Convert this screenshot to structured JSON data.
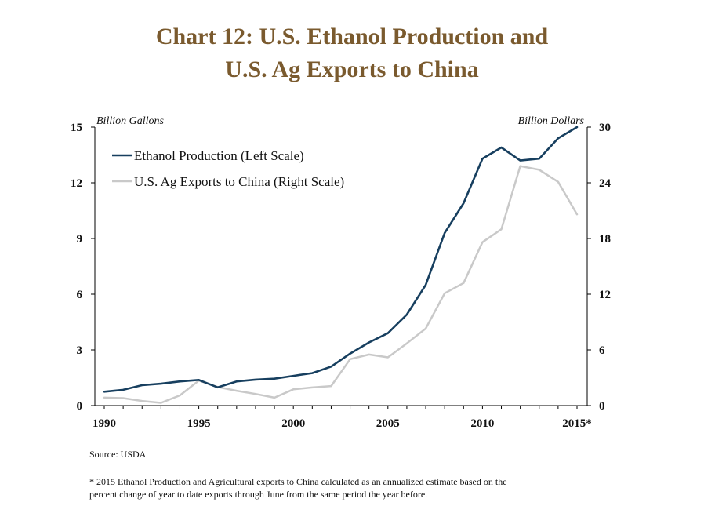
{
  "chart_data": {
    "type": "line",
    "title_lines": [
      "Chart 12: U.S. Ethanol Production and",
      "U.S. Ag Exports to China"
    ],
    "left_axis_label": "Billion Gallons",
    "right_axis_label": "Billion Dollars",
    "x_ticks": [
      "1990",
      "1995",
      "2000",
      "2005",
      "2010",
      "2015*"
    ],
    "left_ticks": [
      "0",
      "3",
      "6",
      "9",
      "12",
      "15"
    ],
    "right_ticks": [
      "0",
      "6",
      "12",
      "18",
      "24",
      "30"
    ],
    "ylim_left": [
      0,
      15
    ],
    "ylim_right": [
      0,
      30
    ],
    "xlim": [
      1990,
      2015
    ],
    "legend_position": "top-left",
    "x": [
      1990,
      1991,
      1992,
      1993,
      1994,
      1995,
      1996,
      1997,
      1998,
      1999,
      2000,
      2001,
      2002,
      2003,
      2004,
      2005,
      2006,
      2007,
      2008,
      2009,
      2010,
      2011,
      2012,
      2013,
      2014,
      2015
    ],
    "series": [
      {
        "name": "Ethanol Production (Left Scale)",
        "axis": "left",
        "color": "#173f5f",
        "values": [
          0.75,
          0.85,
          1.1,
          1.18,
          1.3,
          1.38,
          0.98,
          1.3,
          1.4,
          1.45,
          1.6,
          1.75,
          2.1,
          2.8,
          3.4,
          3.9,
          4.9,
          6.5,
          9.3,
          10.9,
          13.3,
          13.9,
          13.2,
          13.3,
          14.4,
          15.0
        ]
      },
      {
        "name": "U.S. Ag Exports to China (Right Scale)",
        "axis": "right",
        "color": "#c9c9c9",
        "values": [
          0.85,
          0.8,
          0.5,
          0.3,
          1.1,
          2.7,
          2.0,
          1.6,
          1.25,
          0.85,
          1.75,
          1.95,
          2.1,
          5.0,
          5.5,
          5.2,
          6.7,
          8.3,
          12.1,
          13.2,
          17.6,
          19.0,
          25.8,
          25.4,
          24.1,
          20.6
        ]
      }
    ]
  },
  "source": "Source: USDA",
  "footnote_lines": [
    "* 2015 Ethanol Production and Agricultural exports to China calculated as an annualized estimate based on the",
    "percent change of year to date exports through June from the same period the year before."
  ]
}
